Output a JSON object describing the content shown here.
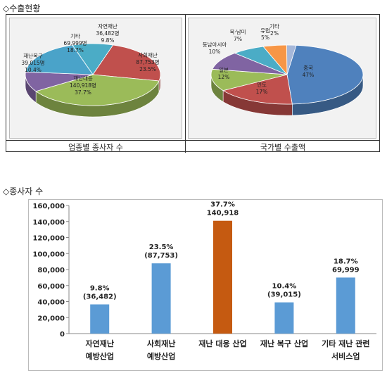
{
  "sections": {
    "export_title": "◇수출현황",
    "employee_title": "◇종사자 수"
  },
  "pie_captions": {
    "left": "업종별 종사자 수",
    "right": "국가별 수출액"
  },
  "chart_data": [
    {
      "type": "pie",
      "caption": "업종별 종사자 수",
      "slices": [
        {
          "label": "자연재난",
          "value_text": "36,482명",
          "pct_text": "9.8%",
          "value": 36482,
          "color": "#4bacc6"
        },
        {
          "label": "사회재난",
          "value_text": "87,753명",
          "pct_text": "23.5%",
          "value": 87753,
          "color": "#c0504d"
        },
        {
          "label": "재난대응",
          "value_text": "140,918명",
          "pct_text": "37.7%",
          "value": 140918,
          "color": "#9bbb59"
        },
        {
          "label": "재난복구",
          "value_text": "39,015명",
          "pct_text": "10.4%",
          "value": 39015,
          "color": "#8064a2"
        },
        {
          "label": "기타",
          "value_text": "69,999명",
          "pct_text": "18.7%",
          "value": 69999,
          "color": "#4aa3c9"
        }
      ]
    },
    {
      "type": "pie",
      "caption": "국가별 수출액",
      "slices": [
        {
          "label": "중국",
          "pct_text": "47%",
          "value": 47,
          "color": "#4f81bd"
        },
        {
          "label": "인도",
          "pct_text": "17%",
          "value": 17,
          "color": "#c0504d"
        },
        {
          "label": "일본",
          "pct_text": "12%",
          "value": 12,
          "color": "#9bbb59"
        },
        {
          "label": "동남아시아",
          "pct_text": "10%",
          "value": 10,
          "color": "#8064a2"
        },
        {
          "label": "북·남미",
          "pct_text": "7%",
          "value": 7,
          "color": "#4bacc6"
        },
        {
          "label": "유럽",
          "pct_text": "5%",
          "value": 5,
          "color": "#f79646"
        },
        {
          "label": "기타",
          "pct_text": "2%",
          "value": 2,
          "color": "#a5b7d9"
        }
      ]
    },
    {
      "type": "bar",
      "categories": [
        [
          "자연재난",
          "예방산업"
        ],
        [
          "사회재난",
          "예방산업"
        ],
        [
          "재난 대응 산업"
        ],
        [
          "재난 복구 산업"
        ],
        [
          "기타 재난 관련",
          "서비스업"
        ]
      ],
      "values": [
        36482,
        87753,
        140918,
        39015,
        69999
      ],
      "labels": [
        [
          "9.8%",
          "(36,482)"
        ],
        [
          "23.5%",
          "(87,753)"
        ],
        [
          "37.7%",
          "140,918"
        ],
        [
          "10.4%",
          "(39,015)"
        ],
        [
          "18.7%",
          "69,999"
        ]
      ],
      "colors": [
        "#5b9bd5",
        "#5b9bd5",
        "#c55a11",
        "#5b9bd5",
        "#5b9bd5"
      ],
      "ylim": [
        0,
        160000
      ],
      "yticks": [
        "0",
        "20,000",
        "40,000",
        "60,000",
        "80,000",
        "100,000",
        "120,000",
        "140,000",
        "160,000"
      ],
      "grid": false
    }
  ]
}
